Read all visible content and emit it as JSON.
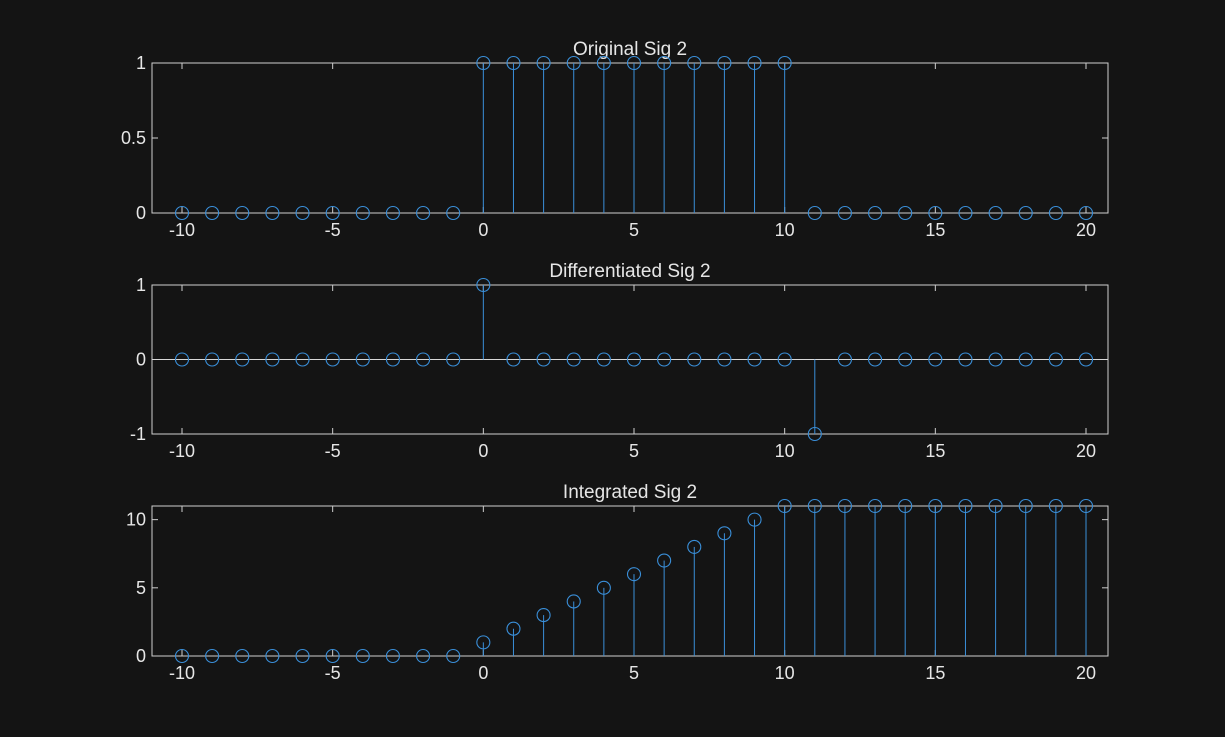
{
  "theme": {
    "background": "#141414",
    "axes_color": "#cfcfcf",
    "text_color": "#e6e6e6",
    "series_color": "#3a8fd9"
  },
  "chart_data": [
    {
      "type": "stem",
      "title": "Original Sig 2",
      "xlabel": "",
      "ylabel": "",
      "xlim": [
        -10,
        20
      ],
      "ylim": [
        0,
        1
      ],
      "xticks": [
        -10,
        -5,
        0,
        5,
        10,
        15,
        20
      ],
      "xtick_labels": [
        "-10",
        "-5",
        "0",
        "5",
        "10",
        "15",
        "20"
      ],
      "yticks": [
        0,
        0.5,
        1
      ],
      "ytick_labels": [
        "0",
        "0.5",
        "1"
      ],
      "grid": false,
      "x": [
        -10,
        -9,
        -8,
        -7,
        -6,
        -5,
        -4,
        -3,
        -2,
        -1,
        0,
        1,
        2,
        3,
        4,
        5,
        6,
        7,
        8,
        9,
        10,
        11,
        12,
        13,
        14,
        15,
        16,
        17,
        18,
        19,
        20
      ],
      "y": [
        0,
        0,
        0,
        0,
        0,
        0,
        0,
        0,
        0,
        0,
        1,
        1,
        1,
        1,
        1,
        1,
        1,
        1,
        1,
        1,
        1,
        0,
        0,
        0,
        0,
        0,
        0,
        0,
        0,
        0,
        0
      ]
    },
    {
      "type": "stem",
      "title": "Differentiated Sig 2",
      "xlabel": "",
      "ylabel": "",
      "xlim": [
        -10,
        20
      ],
      "ylim": [
        -1,
        1
      ],
      "xticks": [
        -10,
        -5,
        0,
        5,
        10,
        15,
        20
      ],
      "xtick_labels": [
        "-10",
        "-5",
        "0",
        "5",
        "10",
        "15",
        "20"
      ],
      "yticks": [
        -1,
        0,
        1
      ],
      "ytick_labels": [
        "-1",
        "0",
        "1"
      ],
      "grid": false,
      "x": [
        -10,
        -9,
        -8,
        -7,
        -6,
        -5,
        -4,
        -3,
        -2,
        -1,
        0,
        1,
        2,
        3,
        4,
        5,
        6,
        7,
        8,
        9,
        10,
        11,
        12,
        13,
        14,
        15,
        16,
        17,
        18,
        19,
        20
      ],
      "y": [
        0,
        0,
        0,
        0,
        0,
        0,
        0,
        0,
        0,
        0,
        1,
        0,
        0,
        0,
        0,
        0,
        0,
        0,
        0,
        0,
        0,
        -1,
        0,
        0,
        0,
        0,
        0,
        0,
        0,
        0,
        0
      ]
    },
    {
      "type": "stem",
      "title": "Integrated Sig 2",
      "xlabel": "",
      "ylabel": "",
      "xlim": [
        -10,
        20
      ],
      "ylim": [
        0,
        11
      ],
      "xticks": [
        -10,
        -5,
        0,
        5,
        10,
        15,
        20
      ],
      "xtick_labels": [
        "-10",
        "-5",
        "0",
        "5",
        "10",
        "15",
        "20"
      ],
      "yticks": [
        0,
        5,
        10
      ],
      "ytick_labels": [
        "0",
        "5",
        "10"
      ],
      "grid": false,
      "x": [
        -10,
        -9,
        -8,
        -7,
        -6,
        -5,
        -4,
        -3,
        -2,
        -1,
        0,
        1,
        2,
        3,
        4,
        5,
        6,
        7,
        8,
        9,
        10,
        11,
        12,
        13,
        14,
        15,
        16,
        17,
        18,
        19,
        20
      ],
      "y": [
        0,
        0,
        0,
        0,
        0,
        0,
        0,
        0,
        0,
        0,
        1,
        2,
        3,
        4,
        5,
        6,
        7,
        8,
        9,
        10,
        11,
        11,
        11,
        11,
        11,
        11,
        11,
        11,
        11,
        11,
        11
      ]
    }
  ]
}
